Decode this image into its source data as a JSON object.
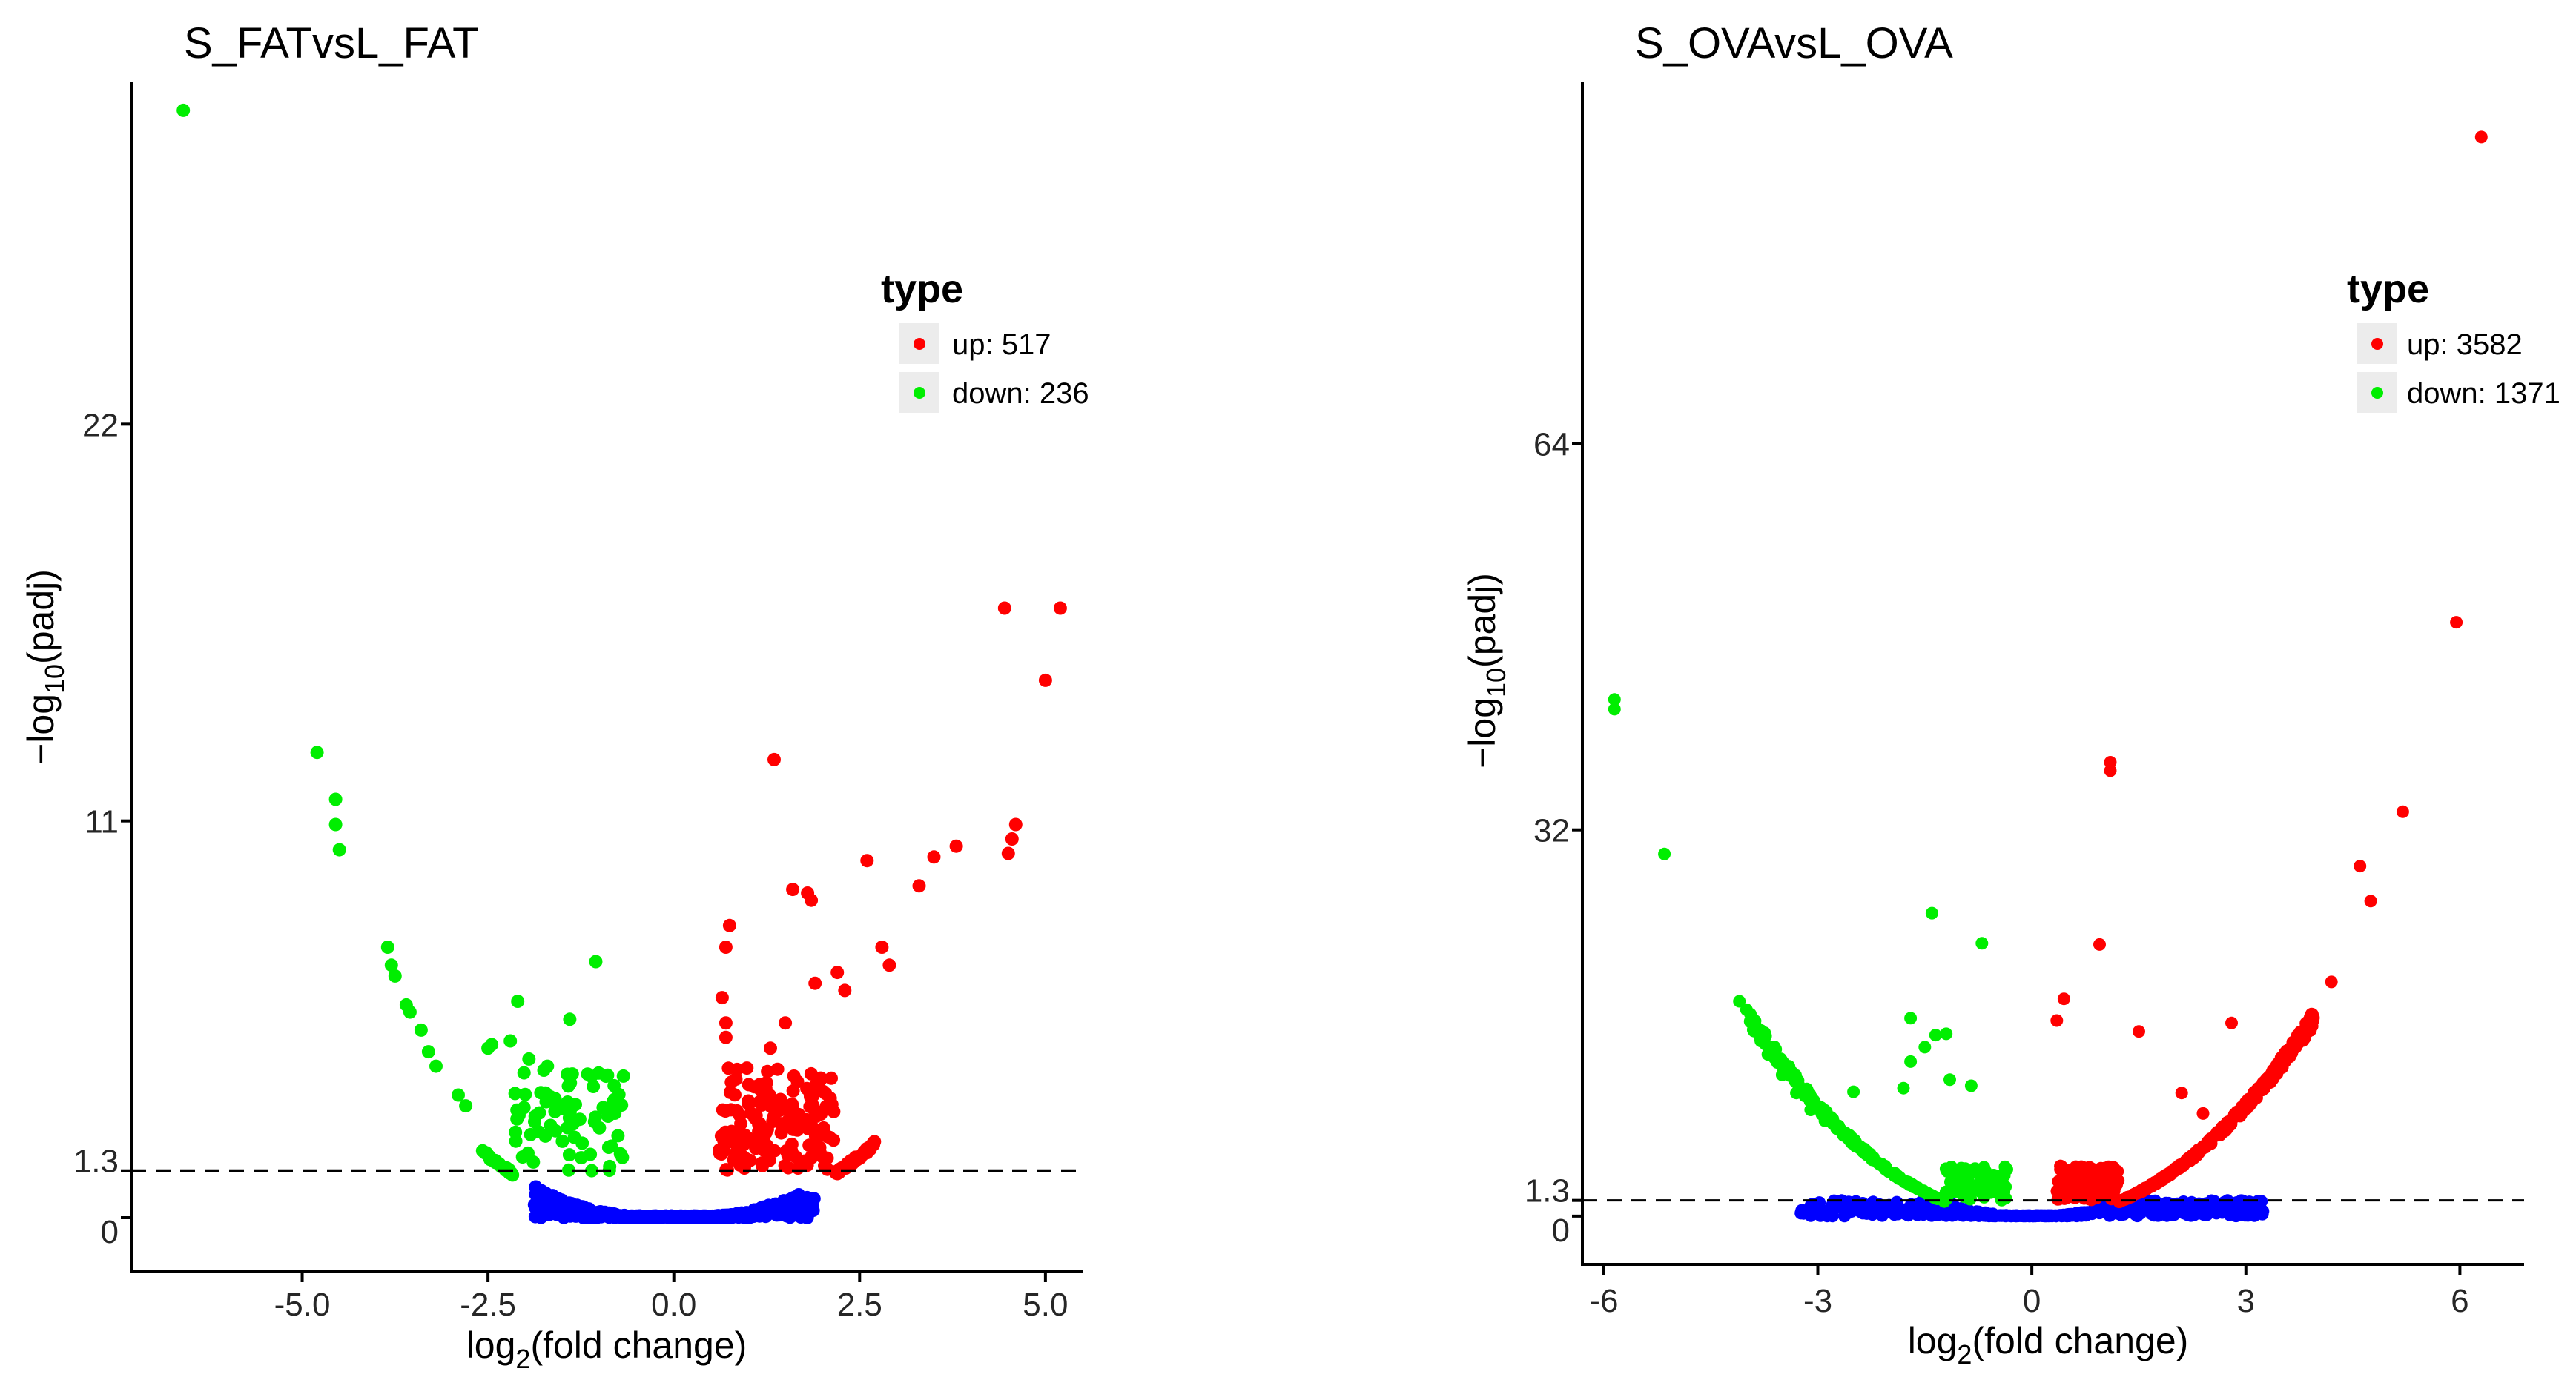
{
  "colors": {
    "up": "#ff0000",
    "down": "#00ee00",
    "nosig": "#0000ff",
    "axis": "#000000",
    "key_bg": "#ececec"
  },
  "chart_data": [
    {
      "type": "scatter",
      "title": "S_FATvsL_FAT",
      "xlabel": {
        "pre": "log",
        "sub": "2",
        "post": "(fold change)"
      },
      "ylabel": {
        "pre": "−log",
        "sub": "10",
        "post": "(padj)"
      },
      "xlim": [
        -7.3,
        5.5
      ],
      "ylim": [
        -1.5,
        31.5
      ],
      "xticks": [
        -5.0,
        -2.5,
        0.0,
        2.5,
        5.0
      ],
      "xtick_labels": [
        "-5.0",
        "-2.5",
        "0.0",
        "2.5",
        "5.0"
      ],
      "yticks": [
        0,
        1.3,
        11,
        22
      ],
      "ytick_labels": [
        "0",
        "1.3",
        "11",
        "22"
      ],
      "threshold": 1.3,
      "legend": {
        "title": "type",
        "position": "top-right",
        "entries": [
          {
            "key": "up",
            "label": "up: 517"
          },
          {
            "key": "down",
            "label": "down: 236"
          }
        ]
      },
      "curve": {
        "x0": 0.45,
        "a": 0.42,
        "p": 1.9,
        "spread": 2.1,
        "n_bulk": 320,
        "n_ns": 460,
        "seed": 7
      },
      "points": {
        "down": [
          [
            -6.6,
            30.7
          ],
          [
            -4.8,
            12.9
          ],
          [
            -4.55,
            11.6
          ],
          [
            -4.55,
            10.9
          ],
          [
            -4.5,
            10.2
          ],
          [
            -3.85,
            7.5
          ],
          [
            -3.8,
            7.0
          ],
          [
            -3.75,
            6.7
          ],
          [
            -3.6,
            5.9
          ],
          [
            -3.55,
            5.7
          ],
          [
            -3.4,
            5.2
          ],
          [
            -3.3,
            4.6
          ],
          [
            -3.2,
            4.2
          ],
          [
            -2.9,
            3.4
          ],
          [
            -2.8,
            3.1
          ],
          [
            -2.5,
            4.7
          ],
          [
            -2.45,
            4.8
          ],
          [
            -2.1,
            6.0
          ],
          [
            -2.2,
            4.9
          ],
          [
            -1.95,
            4.4
          ],
          [
            -1.7,
            4.2
          ],
          [
            -1.4,
            5.5
          ],
          [
            -1.05,
            7.1
          ],
          [
            -0.8,
            3.2
          ],
          [
            -1.5,
            3.1
          ]
        ],
        "up": [
          [
            5.2,
            16.9
          ],
          [
            4.45,
            16.9
          ],
          [
            5.0,
            14.9
          ],
          [
            1.35,
            12.7
          ],
          [
            4.6,
            10.9
          ],
          [
            4.55,
            10.5
          ],
          [
            4.5,
            10.1
          ],
          [
            3.8,
            10.3
          ],
          [
            3.5,
            10.0
          ],
          [
            2.6,
            9.9
          ],
          [
            3.3,
            9.2
          ],
          [
            1.8,
            9.0
          ],
          [
            1.6,
            9.1
          ],
          [
            1.85,
            8.8
          ],
          [
            0.75,
            8.1
          ],
          [
            0.7,
            7.5
          ],
          [
            2.9,
            7.0
          ],
          [
            2.8,
            7.5
          ],
          [
            2.2,
            6.8
          ],
          [
            2.3,
            6.3
          ],
          [
            1.9,
            6.5
          ],
          [
            0.65,
            6.1
          ],
          [
            0.7,
            5.4
          ],
          [
            0.7,
            5.0
          ],
          [
            1.3,
            4.7
          ],
          [
            1.5,
            5.4
          ]
        ]
      }
    },
    {
      "type": "scatter",
      "title": "S_OVAvsL_OVA",
      "xlabel": {
        "pre": "log",
        "sub": "2",
        "post": "(fold change)"
      },
      "ylabel": {
        "pre": "−log",
        "sub": "10",
        "post": "(padj)"
      },
      "xlim": [
        -6.3,
        6.9
      ],
      "ylim": [
        -4.0,
        94.0
      ],
      "xticks": [
        -6,
        -3,
        0,
        3,
        6
      ],
      "xtick_labels": [
        "-6",
        "-3",
        "0",
        "3",
        "6"
      ],
      "yticks": [
        0,
        1.3,
        32,
        64
      ],
      "ytick_labels": [
        "0",
        "1.3",
        "32",
        "64"
      ],
      "threshold": 1.3,
      "legend": {
        "title": "type",
        "position": "top-right",
        "entries": [
          {
            "key": "up",
            "label": "up: 3582"
          },
          {
            "key": "down",
            "label": "down: 1371"
          }
        ]
      },
      "curve": {
        "x0": 0.2,
        "a": 1.12,
        "p": 2.0,
        "spread": 3.6,
        "n_bulk": 800,
        "n_ns": 500,
        "seed": 11
      },
      "points": {
        "down": [
          [
            -5.85,
            42.8
          ],
          [
            -5.85,
            42.0
          ],
          [
            -5.15,
            30.0
          ],
          [
            -4.1,
            17.8
          ],
          [
            -4.0,
            17.1
          ],
          [
            -3.9,
            16.2
          ],
          [
            -3.8,
            14.6
          ],
          [
            -3.7,
            13.4
          ],
          [
            -3.5,
            11.7
          ],
          [
            -3.3,
            10.2
          ],
          [
            -3.1,
            8.8
          ],
          [
            -2.9,
            7.9
          ],
          [
            -2.5,
            10.3
          ],
          [
            -1.4,
            25.1
          ],
          [
            -1.7,
            16.4
          ],
          [
            -1.35,
            15.0
          ],
          [
            -1.2,
            15.1
          ],
          [
            -1.5,
            14.0
          ],
          [
            -0.7,
            22.6
          ],
          [
            -0.85,
            10.8
          ],
          [
            -1.15,
            11.3
          ],
          [
            -1.7,
            12.8
          ],
          [
            -1.8,
            10.6
          ]
        ],
        "up": [
          [
            6.3,
            89.4
          ],
          [
            5.95,
            49.2
          ],
          [
            1.1,
            37.6
          ],
          [
            1.1,
            36.9
          ],
          [
            5.2,
            33.5
          ],
          [
            4.6,
            29.0
          ],
          [
            4.75,
            26.1
          ],
          [
            0.95,
            22.5
          ],
          [
            4.2,
            19.4
          ],
          [
            2.8,
            16.0
          ],
          [
            0.45,
            18.0
          ],
          [
            0.35,
            16.2
          ],
          [
            1.5,
            15.3
          ],
          [
            2.1,
            10.2
          ],
          [
            2.4,
            8.5
          ]
        ]
      }
    }
  ]
}
